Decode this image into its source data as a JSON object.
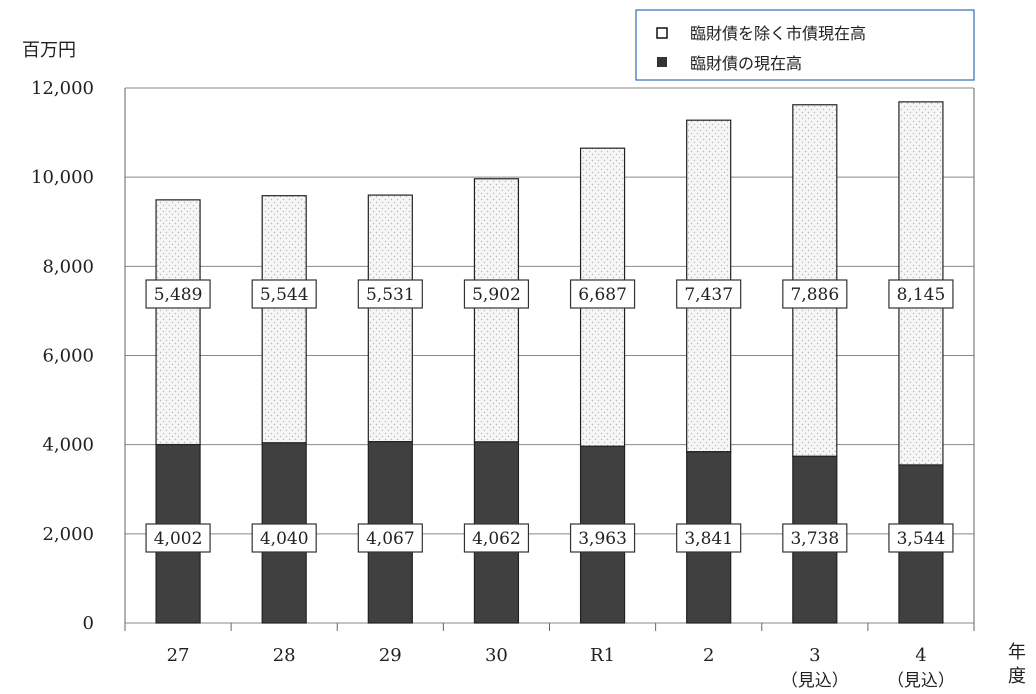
{
  "page": {
    "y_unit_label": "百万円",
    "x_unit_label_line1": "年",
    "x_unit_label_line2": "度"
  },
  "legend": {
    "items": [
      {
        "label": "臨財債を除く市債現在高",
        "swatch": "open-square-icon"
      },
      {
        "label": "臨財債の現在高",
        "swatch": "filled-square-icon"
      }
    ]
  },
  "colors": {
    "dark_fill": "#404040",
    "light_fill": "#f6f6f6",
    "dot_fill": "#b8b8b8",
    "grid": "#888888",
    "legend_border": "#2f6fb3"
  },
  "chart_data": {
    "type": "bar",
    "stacked": true,
    "categories": [
      "27",
      "28",
      "29",
      "30",
      "R1",
      "2",
      "3",
      "4"
    ],
    "category_sub_labels": [
      "",
      "",
      "",
      "",
      "",
      "",
      "（見込）",
      "（見込）"
    ],
    "series": [
      {
        "name": "臨財債の現在高",
        "values": [
          4002,
          4040,
          4067,
          4062,
          3963,
          3841,
          3738,
          3544
        ],
        "value_labels": [
          "4,002",
          "4,040",
          "4,067",
          "4,062",
          "3,963",
          "3,841",
          "3,738",
          "3,544"
        ]
      },
      {
        "name": "臨財債を除く市債現在高",
        "values": [
          5489,
          5544,
          5531,
          5902,
          6687,
          7437,
          7886,
          8145
        ],
        "value_labels": [
          "5,489",
          "5,544",
          "5,531",
          "5,902",
          "6,687",
          "7,437",
          "7,886",
          "8,145"
        ]
      }
    ],
    "yticks": [
      0,
      2000,
      4000,
      6000,
      8000,
      10000,
      12000
    ],
    "ytick_labels": [
      "0",
      "2,000",
      "4,000",
      "6,000",
      "8,000",
      "10,000",
      "12,000"
    ],
    "ylim": [
      0,
      12000
    ],
    "ylabel": "百万円",
    "xlabel": "年度",
    "grid": true,
    "legend_position": "top-right"
  }
}
